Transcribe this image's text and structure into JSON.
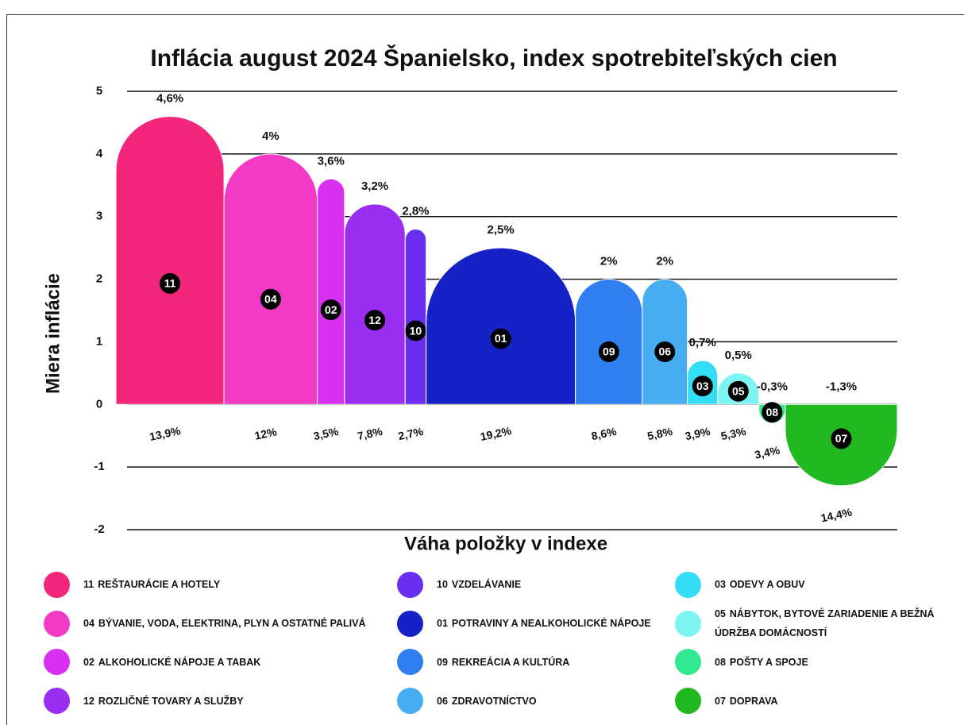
{
  "chart_data": {
    "type": "variable-width-bar",
    "title": "Inflácia august 2024 Španielsko, index spotrebiteľských cien",
    "ylabel": "Miera inflácie",
    "xlabel": "Váha položky v indexe",
    "ylim": [
      -2,
      5
    ],
    "yticks": [
      -2,
      -1,
      0,
      1,
      2,
      3,
      4,
      5
    ],
    "grid": true,
    "categories": [
      "11",
      "04",
      "02",
      "12",
      "10",
      "01",
      "09",
      "06",
      "03",
      "05",
      "08",
      "07"
    ],
    "names": [
      "REŠTAURÁCIE A HOTELY",
      "BÝVANIE, VODA, ELEKTRINA, PLYN A OSTATNÉ PALIVÁ",
      "ALKOHOLICKÉ NÁPOJE A TABAK",
      "ROZLIČNÉ TOVARY A SLUŽBY",
      "VZDELÁVANIE",
      "POTRAVINY A NEALKOHOLICKÉ NÁPOJE",
      "REKREÁCIA A KULTÚRA",
      "ZDRAVOTNÍCTVO",
      "ODEVY A OBUV",
      "NÁBYTOK, BYTOVÉ ZARIADENIE A BEŽNÁ ÚDRŽBA DOMÁCNOSTÍ",
      "POŠTY A SPOJE",
      "DOPRAVA"
    ],
    "colors": [
      "#f2277c",
      "#f23ac6",
      "#d92ff0",
      "#9a2ef0",
      "#6a2ef0",
      "#1722c6",
      "#2f7ff0",
      "#46aef0",
      "#33ddf5",
      "#7cf5f2",
      "#2fe88f",
      "#22b820"
    ],
    "values": [
      4.6,
      4,
      3.6,
      3.2,
      2.8,
      2.5,
      2,
      2,
      0.7,
      0.5,
      -0.3,
      -1.3
    ],
    "value_labels": [
      "4,6%",
      "4%",
      "3,6%",
      "3,2%",
      "2,8%",
      "2,5%",
      "2%",
      "2%",
      "0,7%",
      "0,5%",
      "-0,3%",
      "-1,3%"
    ],
    "weights": [
      13.9,
      12,
      3.5,
      7.8,
      2.7,
      19.2,
      8.6,
      5.8,
      3.9,
      5.3,
      3.4,
      14.4
    ],
    "weight_labels": [
      "13,9%",
      "12%",
      "3,5%",
      "7,8%",
      "2,7%",
      "19,2%",
      "8,6%",
      "5,8%",
      "3,9%",
      "5,3%",
      "3,4%",
      "14,4%"
    ]
  }
}
